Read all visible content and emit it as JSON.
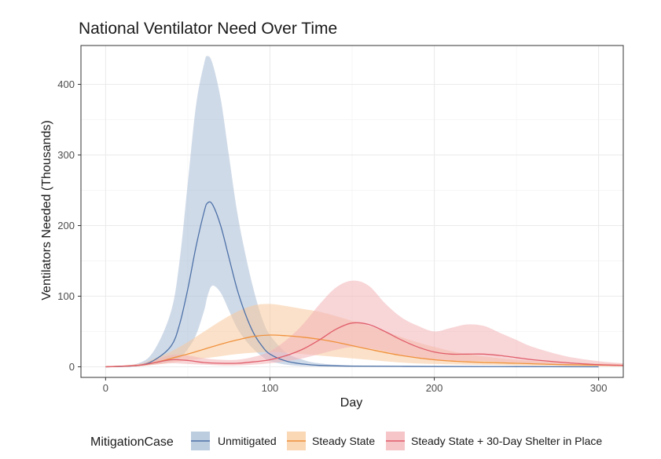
{
  "chart_data": {
    "type": "area",
    "title": "National Ventilator Need Over Time",
    "xlabel": "Day",
    "ylabel": "Ventilators Needed (Thousands)",
    "xlim": [
      -15,
      315
    ],
    "ylim": [
      -15,
      455
    ],
    "xticks": [
      0,
      100,
      200,
      300
    ],
    "yticks": [
      0,
      100,
      200,
      300,
      400
    ],
    "grid": true,
    "legend": {
      "title": "MitigationCase",
      "position": "bottom"
    },
    "series": [
      {
        "name": "Unmitigated",
        "color": "#4e72a8",
        "band_color": "#a7bcd6",
        "x": [
          0,
          20,
          30,
          40,
          45,
          50,
          55,
          60,
          62,
          65,
          70,
          75,
          80,
          85,
          90,
          95,
          100,
          110,
          120,
          130,
          150,
          200,
          250,
          300
        ],
        "y": [
          0,
          2,
          10,
          30,
          60,
          110,
          170,
          220,
          232,
          230,
          200,
          155,
          110,
          75,
          48,
          30,
          18,
          8,
          4,
          2,
          1,
          0.5,
          0.2,
          0
        ],
        "lower": [
          0,
          1,
          4,
          8,
          12,
          25,
          45,
          80,
          100,
          115,
          105,
          80,
          55,
          38,
          25,
          15,
          8,
          3,
          1,
          0.5,
          0,
          0,
          0,
          0
        ],
        "upper": [
          0,
          5,
          25,
          80,
          150,
          260,
          370,
          430,
          440,
          430,
          380,
          300,
          220,
          160,
          110,
          70,
          45,
          20,
          10,
          5,
          2,
          1,
          0.5,
          0
        ]
      },
      {
        "name": "Steady State",
        "color": "#f0913c",
        "band_color": "#f8c99c",
        "x": [
          0,
          20,
          30,
          40,
          50,
          60,
          70,
          80,
          90,
          100,
          110,
          120,
          130,
          140,
          150,
          160,
          180,
          200,
          220,
          250,
          280,
          315
        ],
        "y": [
          0,
          2,
          6,
          12,
          18,
          25,
          32,
          38,
          43,
          45,
          44,
          42,
          39,
          35,
          30,
          25,
          16,
          10,
          7,
          5,
          3,
          2
        ],
        "lower": [
          0,
          1,
          3,
          6,
          9,
          12,
          15,
          18,
          20,
          21,
          20,
          18,
          16,
          14,
          12,
          10,
          6,
          4,
          3,
          2,
          1,
          0.5
        ],
        "upper": [
          0,
          4,
          12,
          22,
          35,
          50,
          65,
          78,
          87,
          89,
          86,
          82,
          78,
          72,
          65,
          58,
          42,
          28,
          18,
          10,
          6,
          4
        ]
      },
      {
        "name": "Steady State + 30-Day Shelter in Place",
        "color": "#e05d6a",
        "band_color": "#f3b2b6",
        "x": [
          0,
          20,
          30,
          40,
          50,
          60,
          70,
          80,
          90,
          100,
          110,
          120,
          130,
          140,
          150,
          160,
          170,
          180,
          190,
          200,
          210,
          220,
          230,
          240,
          250,
          260,
          280,
          300,
          315
        ],
        "y": [
          0,
          2,
          6,
          10,
          9,
          6,
          5,
          5,
          7,
          10,
          16,
          25,
          38,
          53,
          62,
          60,
          50,
          38,
          28,
          21,
          18,
          18,
          18,
          16,
          13,
          10,
          6,
          3,
          2
        ],
        "lower": [
          0,
          1,
          3,
          5,
          4,
          3,
          2,
          2,
          3,
          5,
          8,
          12,
          18,
          24,
          28,
          26,
          22,
          16,
          12,
          9,
          8,
          8,
          8,
          7,
          6,
          5,
          3,
          1.5,
          1
        ],
        "upper": [
          0,
          4,
          10,
          17,
          16,
          12,
          10,
          10,
          14,
          22,
          38,
          60,
          88,
          112,
          122,
          115,
          90,
          70,
          58,
          50,
          55,
          60,
          58,
          48,
          38,
          28,
          15,
          8,
          5
        ]
      }
    ]
  }
}
